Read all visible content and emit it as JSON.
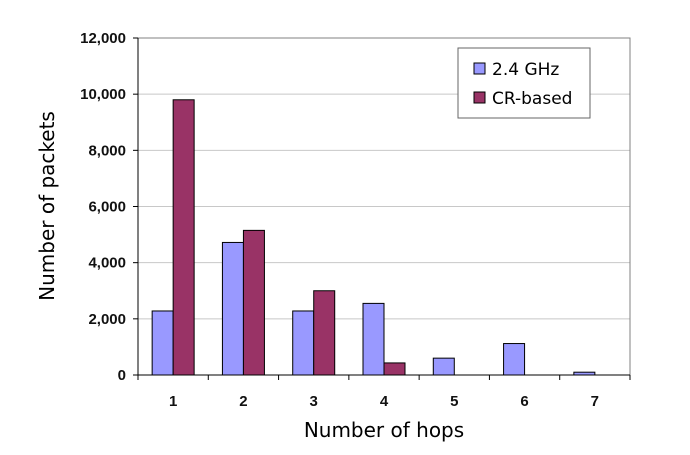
{
  "chart_data": {
    "type": "bar",
    "title": "",
    "xlabel": "Number of hops",
    "ylabel": "Number of packets",
    "categories": [
      "1",
      "2",
      "3",
      "4",
      "5",
      "6",
      "7"
    ],
    "series": [
      {
        "name": "2.4 GHz",
        "color": "#9999ff",
        "values": [
          2280,
          4720,
          2280,
          2550,
          600,
          1120,
          100
        ]
      },
      {
        "name": "CR-based",
        "color": "#993366",
        "values": [
          9800,
          5150,
          3000,
          430,
          0,
          0,
          0
        ]
      }
    ],
    "ylim": [
      0,
      12000
    ],
    "yticks": [
      0,
      2000,
      4000,
      6000,
      8000,
      10000,
      12000
    ],
    "ytick_labels": [
      "0",
      "2,000",
      "4,000",
      "6,000",
      "8,000",
      "10,000",
      "12,000"
    ],
    "grid": true,
    "legend": "top-right"
  }
}
